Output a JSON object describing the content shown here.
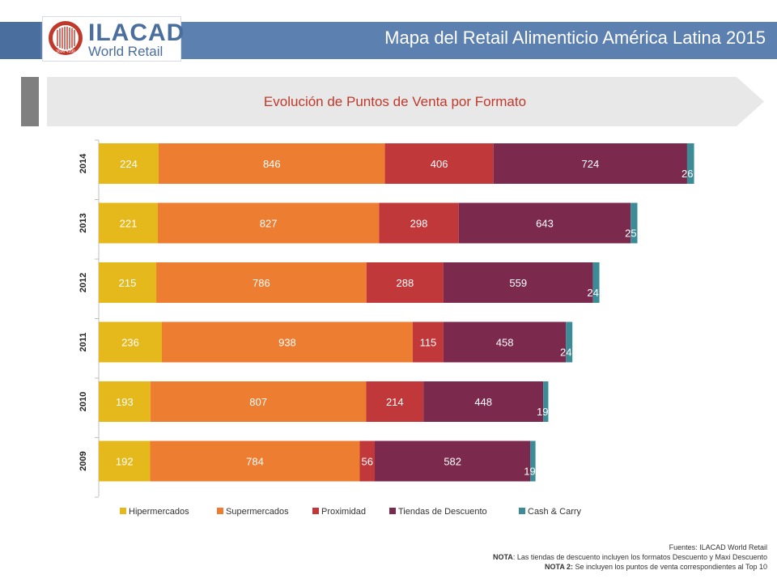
{
  "header": {
    "logo_name": "ILACAD",
    "logo_subtitle": "World Retail",
    "logo_seal_text": "3690 4390",
    "title": "Mapa del Retail Alimenticio América Latina 2015"
  },
  "subheader": {
    "title": "Evolución de Puntos de Venta por Formato"
  },
  "chart_data": {
    "type": "bar",
    "orientation": "horizontal",
    "stacked": true,
    "title": "",
    "xlabel": "",
    "ylabel": "",
    "categories": [
      "2014",
      "2013",
      "2012",
      "2011",
      "2010",
      "2009"
    ],
    "series": [
      {
        "name": "Hipermercados",
        "color": "#e5b81b",
        "values": [
          224,
          221,
          215,
          236,
          193,
          192
        ]
      },
      {
        "name": "Supermercados",
        "color": "#ed7d31",
        "values": [
          846,
          827,
          786,
          938,
          807,
          784
        ]
      },
      {
        "name": "Proximidad",
        "color": "#c0383a",
        "values": [
          406,
          298,
          288,
          115,
          214,
          56
        ]
      },
      {
        "name": "Tiendas de Descuento",
        "color": "#7b2a4d",
        "values": [
          724,
          643,
          559,
          458,
          448,
          582
        ]
      },
      {
        "name": "Cash & Carry",
        "color": "#3c8c97",
        "values": [
          26,
          25,
          24,
          24,
          19,
          19
        ]
      }
    ],
    "xlim": [
      0,
      2300
    ],
    "grid": false,
    "legend": "bottom"
  },
  "footer": {
    "sources_label": "Fuentes:",
    "sources_text": "ILACAD World Retail",
    "note1_label": "NOTA",
    "note1_text": ": Las tiendas de descuento incluyen los formatos Descuento y Maxi Descuento",
    "note2_label": "NOTA 2:",
    "note2_text": "Se incluyen los puntos de venta correspondientes al Top 10"
  }
}
